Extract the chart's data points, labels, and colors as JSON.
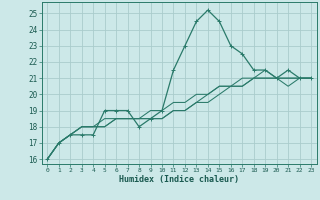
{
  "xlabel": "Humidex (Indice chaleur)",
  "bg_color": "#cce8e8",
  "grid_color": "#aacccc",
  "line_color": "#2a7a6a",
  "xlim": [
    -0.5,
    23.5
  ],
  "ylim": [
    15.7,
    25.7
  ],
  "xticks": [
    0,
    1,
    2,
    3,
    4,
    5,
    6,
    7,
    8,
    9,
    10,
    11,
    12,
    13,
    14,
    15,
    16,
    17,
    18,
    19,
    20,
    21,
    22,
    23
  ],
  "yticks": [
    16,
    17,
    18,
    19,
    20,
    21,
    22,
    23,
    24,
    25
  ],
  "series": [
    [
      16.0,
      17.0,
      17.5,
      17.5,
      17.5,
      19.0,
      19.0,
      19.0,
      18.0,
      18.5,
      19.0,
      21.5,
      23.0,
      24.5,
      25.2,
      24.5,
      23.0,
      22.5,
      21.5,
      21.5,
      21.0,
      21.5,
      21.0,
      21.0
    ],
    [
      16.0,
      17.0,
      17.5,
      18.0,
      18.0,
      18.0,
      18.5,
      18.5,
      18.5,
      18.5,
      18.5,
      19.0,
      19.0,
      19.5,
      20.0,
      20.5,
      20.5,
      21.0,
      21.0,
      21.5,
      21.0,
      21.0,
      21.0,
      21.0
    ],
    [
      16.0,
      17.0,
      17.5,
      18.0,
      18.0,
      18.0,
      18.5,
      18.5,
      18.5,
      18.5,
      18.5,
      19.0,
      19.0,
      19.5,
      19.5,
      20.0,
      20.5,
      20.5,
      21.0,
      21.0,
      21.0,
      20.5,
      21.0,
      21.0
    ],
    [
      16.0,
      17.0,
      17.5,
      18.0,
      18.0,
      18.5,
      18.5,
      18.5,
      18.5,
      19.0,
      19.0,
      19.5,
      19.5,
      20.0,
      20.0,
      20.5,
      20.5,
      20.5,
      21.0,
      21.0,
      21.0,
      21.0,
      21.0,
      21.0
    ]
  ]
}
